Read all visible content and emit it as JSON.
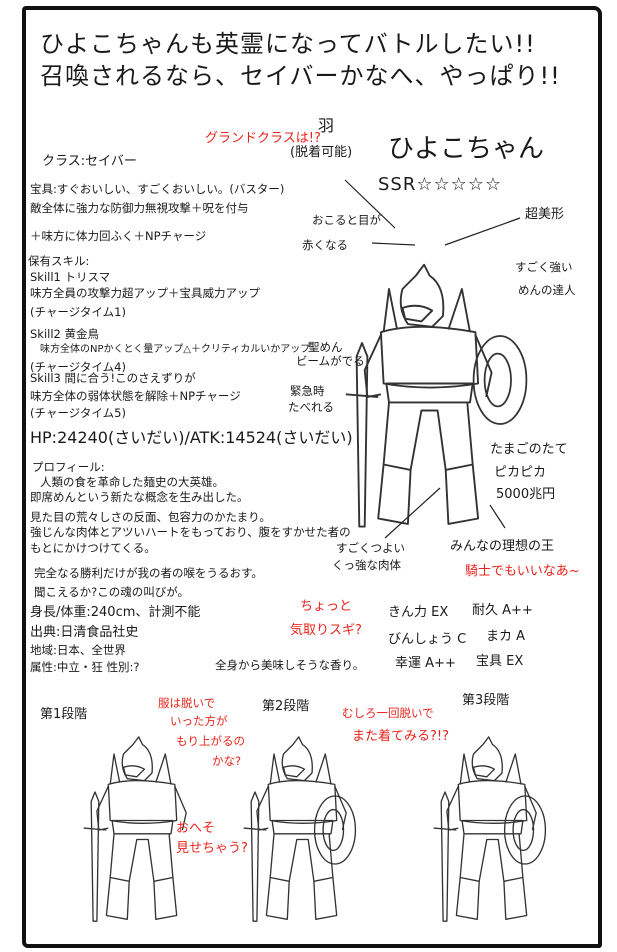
{
  "title": {
    "line1": "ひよこちゃんも英霊になってバトルしたい!!",
    "line2": "召喚されるなら、セイバーかなへ、やっぱり!!"
  },
  "character": {
    "name": "ひよこちゃん",
    "rarity": "SSR☆☆☆☆☆",
    "grand_class_note": "グランドクラスは!?",
    "wings": "羽",
    "wings_note": "(脱着可能)"
  },
  "annotations": {
    "eyes_1": "おこると目が",
    "eyes_2": "赤くなる",
    "handsome": "超美形",
    "strong_1": "すごく強い",
    "strong_2": "めんの達人",
    "beam_1": "聖めん",
    "beam_2": "ビームがでる",
    "emergency_1": "緊急時",
    "emergency_2": "たべれる",
    "shield_1": "たまごのたて",
    "shield_2": "ピカピカ",
    "shield_3": "5000兆円",
    "body_1": "すごくつよい",
    "body_2": "くっ強な肉体",
    "king": "みんなの理想の王",
    "knight_red": "騎士でもいいなあ~",
    "vain_1": "ちょっと",
    "vain_2": "気取りスギ?",
    "aroma": "全身から美味しそうな香り。"
  },
  "profile_block": [
    "クラス:セイバー",
    "宝具:すぐおいしい、すごくおいしい。(バスター)",
    "敵全体に強力な防御力無視攻撃＋呪を付与",
    "＋味方に体力回ふく＋NPチャージ",
    "保有スキル:",
    "Skill1 トリスマ",
    "味方全員の攻撃力超アップ＋宝具威力アップ",
    "(チャージタイム1)",
    "Skill2 黄金鳥",
    "味方全体のNPかくとく量アップ△＋クリティカルいかアップ",
    "(チャージタイム4)",
    "Skill3 間に合う!このさえずりが",
    "味方全体の弱体状態を解除＋NPチャージ",
    "(チャージタイム5)"
  ],
  "stats_line": "HP:24240(さいだい)/ATK:14524(さいだい)",
  "profile_text": [
    "プロフィール:",
    "人類の食を革命した麺史の大英雄。",
    "即席めんという新たな概念を生み出した。",
    "見た目の荒々しさの反面、包容力のかたまり。",
    "強じんな肉体とアツいハートをもっており、腹をすかせた者の",
    "もとにかけつけてくる。",
    "完全なる勝利だけが我の者の喉をうるおす。",
    "聞こえるか?この魂の叫びが。"
  ],
  "details": [
    "身長/体重:240cm、計測不能",
    "出典:日清食品社史",
    "地域:日本、全世界",
    "属性:中立・狂 性別:?"
  ],
  "parameters": [
    {
      "label": "きん力",
      "rank": "EX"
    },
    {
      "label": "耐久",
      "rank": "A++"
    },
    {
      "label": "びんしょう",
      "rank": "C"
    },
    {
      "label": "まカ",
      "rank": "A"
    },
    {
      "label": "幸運",
      "rank": "A++"
    },
    {
      "label": "宝具",
      "rank": "EX"
    }
  ],
  "stages": [
    {
      "label": "第1段階",
      "note": [
        "服は脱いで",
        "いった方が",
        "もり上がるの",
        "かな?"
      ],
      "note2": [
        "おへそ",
        "見せちゃう?"
      ]
    },
    {
      "label": "第2段階",
      "note": [
        "むしろ一回脱いで",
        "また着てみる?!?"
      ]
    },
    {
      "label": "第3段階"
    }
  ],
  "colors": {
    "ink": "#1a1a1a",
    "red_note": "#e8241c"
  }
}
